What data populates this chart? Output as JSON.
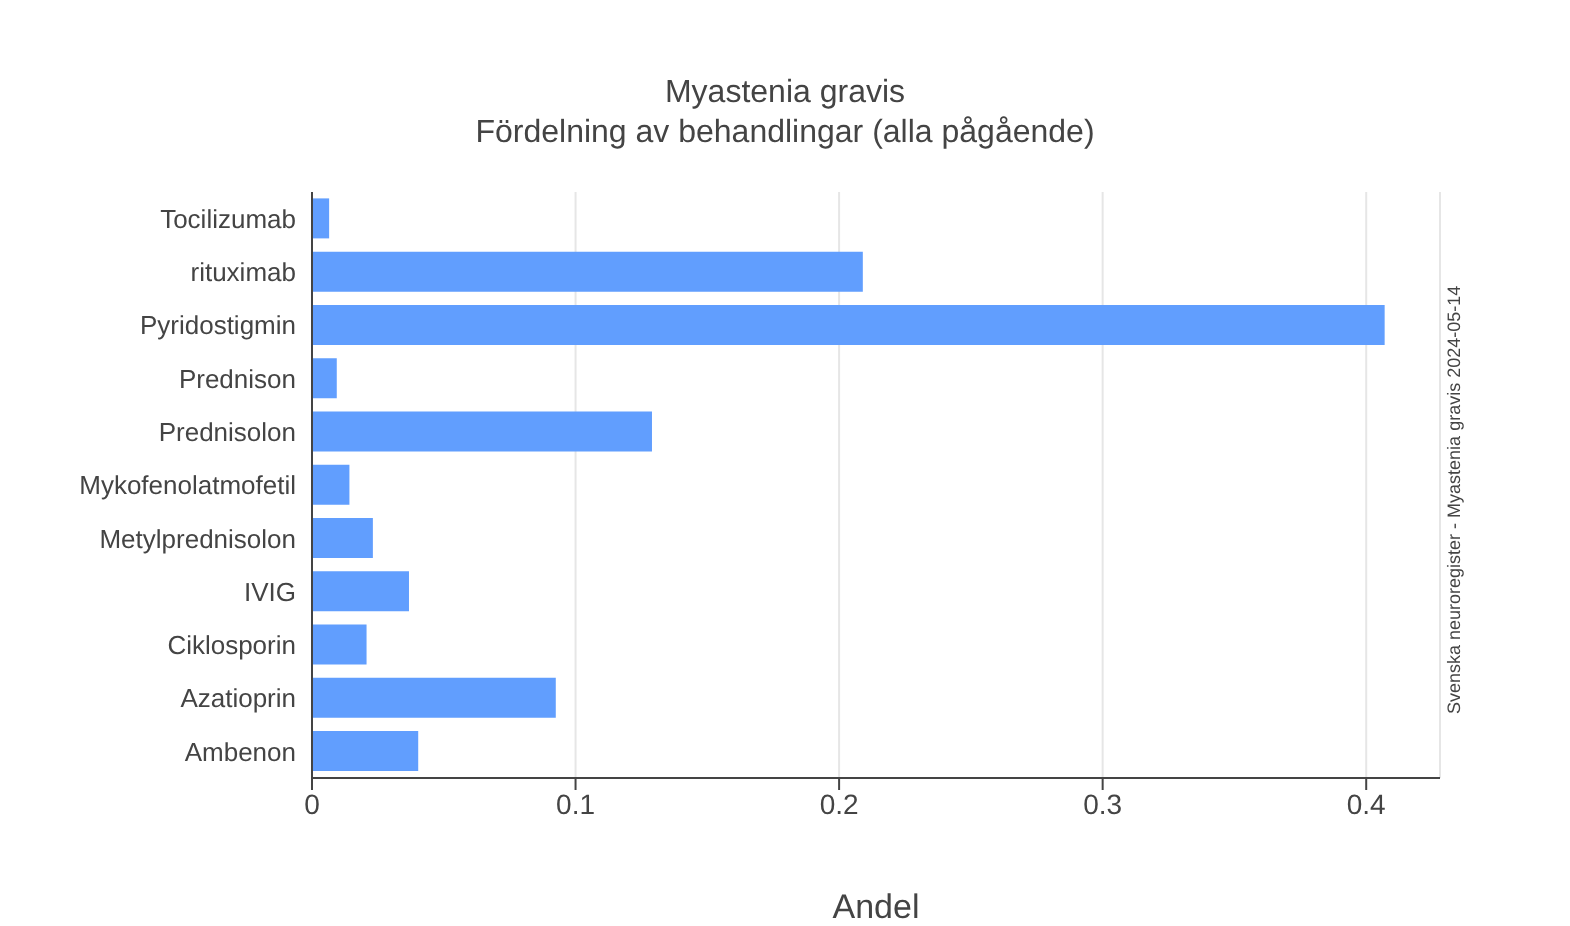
{
  "chart_data": {
    "type": "bar",
    "orientation": "horizontal",
    "title": "Myastenia gravis",
    "subtitle": "Fördelning av behandlingar (alla pågående)",
    "xlabel": "Andel",
    "categories": [
      "Tocilizumab",
      "rituximab",
      "Pyridostigmin",
      "Prednison",
      "Prednisolon",
      "Mykofenolatmofetil",
      "Metylprednisolon",
      "IVIG",
      "Ciklosporin",
      "Azatioprin",
      "Ambenon"
    ],
    "values": [
      0.0065,
      0.209,
      0.407,
      0.0094,
      0.129,
      0.0142,
      0.0231,
      0.0368,
      0.0207,
      0.0925,
      0.0403
    ],
    "color": "#619efe",
    "xlim": [
      0,
      0.428
    ],
    "xticks": [
      0,
      0.1,
      0.2,
      0.3,
      0.4
    ],
    "grid": "x",
    "annotations": [
      "Svenska neuroregister - Myastenia gravis 2024-05-14"
    ]
  }
}
